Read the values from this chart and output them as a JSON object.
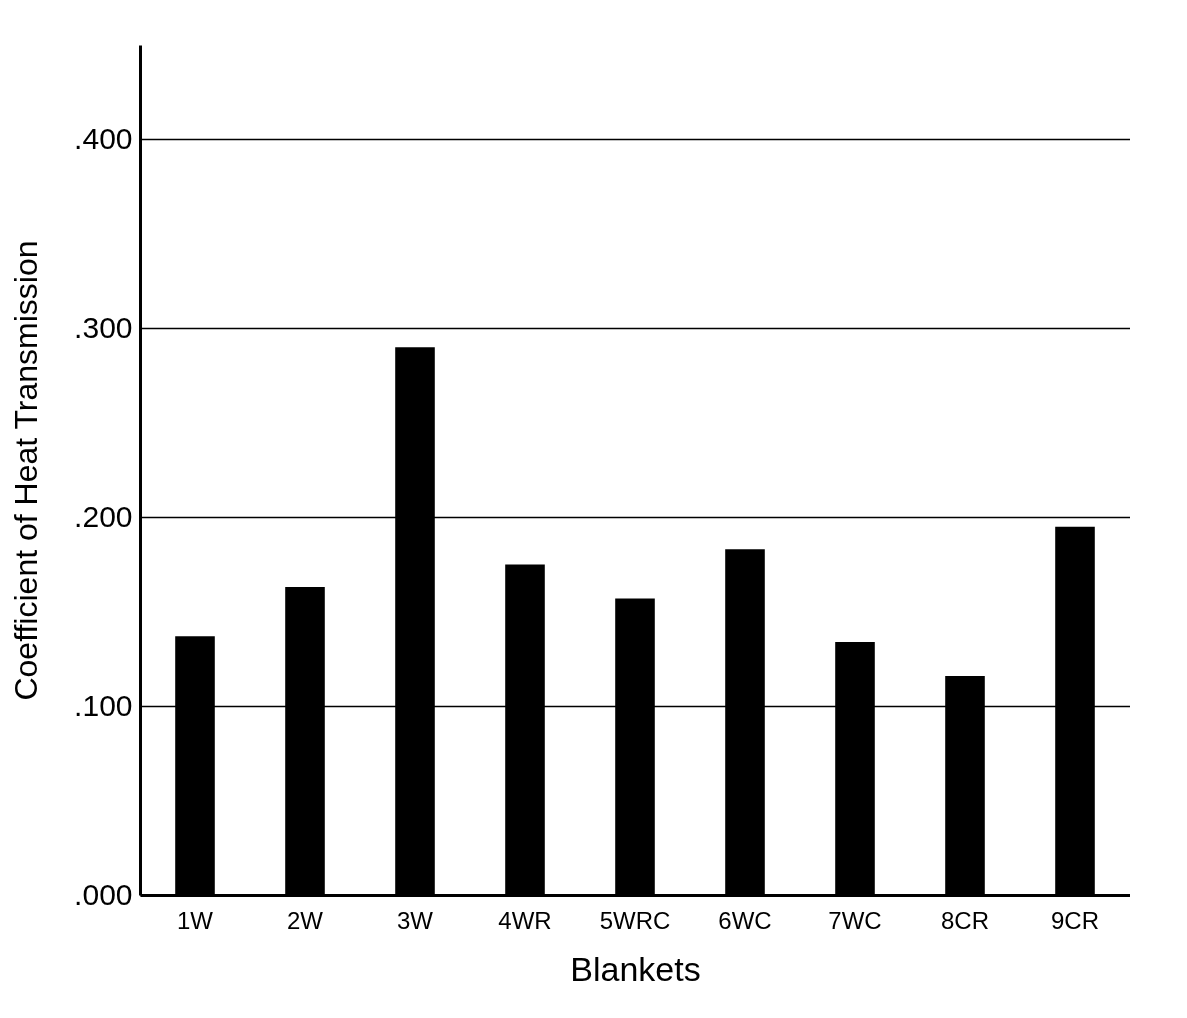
{
  "chart_data": {
    "type": "bar",
    "xlabel": "Blankets",
    "ylabel": "Coefficient of Heat Transmission",
    "categories": [
      "1W",
      "2W",
      "3W",
      "4WR",
      "5WRC",
      "6WC",
      "7WC",
      "8CR",
      "9CR"
    ],
    "values": [
      0.137,
      0.163,
      0.29,
      0.175,
      0.157,
      0.183,
      0.134,
      0.116,
      0.195
    ],
    "color": "#000000",
    "ylim": [
      0,
      0.45
    ],
    "yticks": [
      {
        "value": 0,
        "label": ".000"
      },
      {
        "value": 0.1,
        "label": ".100"
      },
      {
        "value": 0.2,
        "label": ".200"
      },
      {
        "value": 0.3,
        "label": ".300"
      },
      {
        "value": 0.4,
        "label": ".400"
      }
    ],
    "grid": "y"
  }
}
